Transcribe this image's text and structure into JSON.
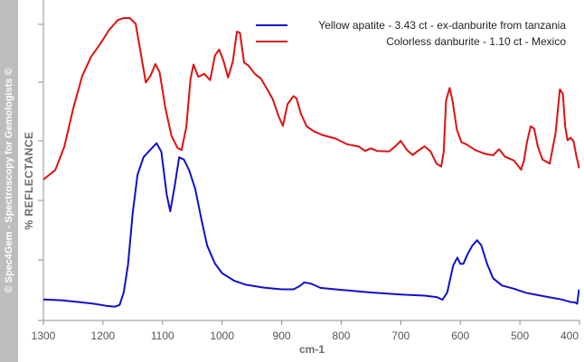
{
  "watermark": "© Spec4Gem - Spectroscopy for Gemologists ©",
  "chart_data": {
    "type": "line",
    "xlabel": "cm-1",
    "ylabel": "% REFLECTANCE",
    "xlim": [
      1300,
      400
    ],
    "x_reversed": true,
    "ylim": [
      0,
      100
    ],
    "y_ticks_labeled": false,
    "x_ticks": [
      1300,
      1200,
      1100,
      1000,
      900,
      800,
      700,
      600,
      500,
      400
    ],
    "x_tick_labels": [
      "1300",
      "1200",
      "1100",
      "1000",
      "900",
      "800",
      "700",
      "600",
      "500",
      "400"
    ],
    "y_ticks": [
      0,
      18.75,
      37.5,
      56.25,
      75,
      93.75
    ],
    "grid": false,
    "legend_position": "top-right",
    "series": [
      {
        "name": "Yellow apatite - 3.43 ct - ex-danburite from tanzania",
        "color": "#1010cc",
        "points": [
          [
            1300,
            2.6
          ],
          [
            1270,
            2.3
          ],
          [
            1240,
            1.7
          ],
          [
            1215,
            1.1
          ],
          [
            1195,
            0.4
          ],
          [
            1180,
            0.1
          ],
          [
            1172,
            0.7
          ],
          [
            1165,
            5.1
          ],
          [
            1158,
            14.6
          ],
          [
            1150,
            32.5
          ],
          [
            1142,
            45.7
          ],
          [
            1132,
            51.8
          ],
          [
            1120,
            54.5
          ],
          [
            1110,
            56.7
          ],
          [
            1102,
            53.7
          ],
          [
            1093,
            38.9
          ],
          [
            1087,
            33.1
          ],
          [
            1080,
            41.4
          ],
          [
            1072,
            51.8
          ],
          [
            1064,
            51.0
          ],
          [
            1055,
            47.2
          ],
          [
            1045,
            40.8
          ],
          [
            1035,
            30.6
          ],
          [
            1025,
            21.2
          ],
          [
            1012,
            15.0
          ],
          [
            1000,
            11.7
          ],
          [
            980,
            9.1
          ],
          [
            960,
            7.7
          ],
          [
            930,
            6.7
          ],
          [
            900,
            6.1
          ],
          [
            880,
            6.1
          ],
          [
            870,
            7.2
          ],
          [
            862,
            8.5
          ],
          [
            850,
            8.0
          ],
          [
            835,
            6.6
          ],
          [
            800,
            5.9
          ],
          [
            750,
            5.0
          ],
          [
            700,
            4.3
          ],
          [
            660,
            3.9
          ],
          [
            640,
            3.4
          ],
          [
            630,
            2.5
          ],
          [
            622,
            5.0
          ],
          [
            612,
            14.3
          ],
          [
            605,
            17.1
          ],
          [
            600,
            14.9
          ],
          [
            595,
            14.9
          ],
          [
            588,
            18.2
          ],
          [
            580,
            21.2
          ],
          [
            572,
            23.1
          ],
          [
            565,
            21.4
          ],
          [
            555,
            14.8
          ],
          [
            545,
            9.9
          ],
          [
            530,
            7.4
          ],
          [
            510,
            6.3
          ],
          [
            490,
            4.9
          ],
          [
            470,
            4.1
          ],
          [
            450,
            3.3
          ],
          [
            430,
            2.6
          ],
          [
            415,
            1.7
          ],
          [
            408,
            1.6
          ],
          [
            404,
            1.1
          ],
          [
            402,
            4.1
          ],
          [
            401,
            6.0
          ]
        ]
      },
      {
        "name": "Colorless danburite - 1.10 ct - Mexico",
        "color": "#dd1111",
        "points": [
          [
            1300,
            44.1
          ],
          [
            1280,
            47.4
          ],
          [
            1265,
            55.4
          ],
          [
            1250,
            68.6
          ],
          [
            1235,
            79.8
          ],
          [
            1220,
            86.6
          ],
          [
            1205,
            90.9
          ],
          [
            1190,
            95.8
          ],
          [
            1175,
            99.3
          ],
          [
            1165,
            100.0
          ],
          [
            1155,
            100.0
          ],
          [
            1145,
            98.0
          ],
          [
            1135,
            86.0
          ],
          [
            1128,
            77.7
          ],
          [
            1120,
            80.1
          ],
          [
            1112,
            84.1
          ],
          [
            1105,
            81.3
          ],
          [
            1095,
            68.6
          ],
          [
            1085,
            59.2
          ],
          [
            1075,
            55.1
          ],
          [
            1068,
            54.3
          ],
          [
            1060,
            62.3
          ],
          [
            1053,
            78.8
          ],
          [
            1048,
            83.9
          ],
          [
            1040,
            79.7
          ],
          [
            1030,
            80.7
          ],
          [
            1020,
            78.5
          ],
          [
            1012,
            87.1
          ],
          [
            1005,
            89.1
          ],
          [
            998,
            85.4
          ],
          [
            990,
            79.4
          ],
          [
            982,
            84.9
          ],
          [
            975,
            95.3
          ],
          [
            970,
            94.9
          ],
          [
            963,
            84.6
          ],
          [
            955,
            83.4
          ],
          [
            945,
            80.7
          ],
          [
            935,
            79.1
          ],
          [
            925,
            75.6
          ],
          [
            915,
            71.9
          ],
          [
            905,
            65.9
          ],
          [
            898,
            62.7
          ],
          [
            890,
            70.2
          ],
          [
            880,
            73.0
          ],
          [
            875,
            72.2
          ],
          [
            868,
            67.1
          ],
          [
            858,
            62.5
          ],
          [
            845,
            60.7
          ],
          [
            830,
            59.4
          ],
          [
            810,
            58.3
          ],
          [
            790,
            56.3
          ],
          [
            770,
            55.5
          ],
          [
            760,
            54.0
          ],
          [
            750,
            54.9
          ],
          [
            740,
            54.0
          ],
          [
            720,
            53.8
          ],
          [
            710,
            55.4
          ],
          [
            700,
            57.5
          ],
          [
            690,
            54.4
          ],
          [
            680,
            52.6
          ],
          [
            670,
            54.2
          ],
          [
            660,
            55.6
          ],
          [
            650,
            53.8
          ],
          [
            640,
            49.6
          ],
          [
            632,
            48.6
          ],
          [
            628,
            53.7
          ],
          [
            624,
            71.4
          ],
          [
            618,
            75.8
          ],
          [
            613,
            71.2
          ],
          [
            606,
            61.4
          ],
          [
            598,
            57.0
          ],
          [
            590,
            56.3
          ],
          [
            575,
            54.3
          ],
          [
            560,
            53.1
          ],
          [
            545,
            52.5
          ],
          [
            535,
            54.6
          ],
          [
            525,
            52.0
          ],
          [
            510,
            50.7
          ],
          [
            498,
            47.5
          ],
          [
            493,
            50.8
          ],
          [
            488,
            57.2
          ],
          [
            482,
            62.5
          ],
          [
            476,
            61.7
          ],
          [
            470,
            55.5
          ],
          [
            462,
            51.0
          ],
          [
            450,
            49.6
          ],
          [
            440,
            60.3
          ],
          [
            433,
            75.3
          ],
          [
            428,
            73.8
          ],
          [
            424,
            62.4
          ],
          [
            420,
            57.7
          ],
          [
            415,
            58.6
          ],
          [
            410,
            57.4
          ],
          [
            405,
            52.0
          ],
          [
            402,
            49.4
          ],
          [
            401,
            48.0
          ]
        ]
      }
    ]
  }
}
